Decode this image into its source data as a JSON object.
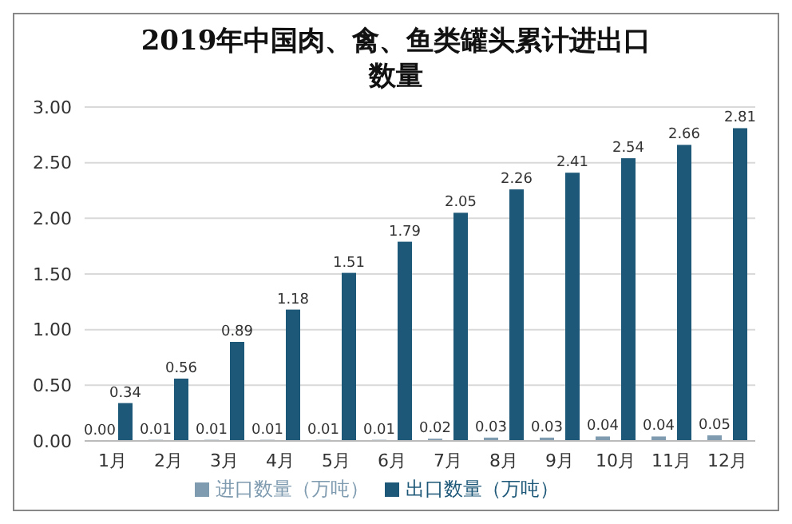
{
  "chart_data": {
    "type": "bar",
    "title": "2019年中国肉、禽、鱼类罐头累计进出口数量",
    "categories": [
      "1月",
      "2月",
      "3月",
      "4月",
      "5月",
      "6月",
      "7月",
      "8月",
      "9月",
      "10月",
      "11月",
      "12月"
    ],
    "series": [
      {
        "name": "进口数量（万吨）",
        "color": "#7f9bb0",
        "values": [
          0.0,
          0.01,
          0.01,
          0.01,
          0.01,
          0.01,
          0.02,
          0.03,
          0.03,
          0.04,
          0.04,
          0.05
        ],
        "value_labels": [
          "0.00",
          "0.01",
          "0.01",
          "0.01",
          "0.01",
          "0.01",
          "0.02",
          "0.03",
          "0.03",
          "0.04",
          "0.04",
          "0.05"
        ]
      },
      {
        "name": "出口数量（万吨）",
        "color": "#1e5878",
        "values": [
          0.34,
          0.56,
          0.89,
          1.18,
          1.51,
          1.79,
          2.05,
          2.26,
          2.41,
          2.54,
          2.66,
          2.81
        ],
        "value_labels": [
          "0.34",
          "0.56",
          "0.89",
          "1.18",
          "1.51",
          "1.79",
          "2.05",
          "2.26",
          "2.41",
          "2.54",
          "2.66",
          "2.81"
        ]
      }
    ],
    "ylim": [
      0,
      3
    ],
    "yticks": [
      {
        "value": 0,
        "label": "0.00"
      },
      {
        "value": 0.5,
        "label": "0.50"
      },
      {
        "value": 1,
        "label": "1.00"
      },
      {
        "value": 1.5,
        "label": "1.50"
      },
      {
        "value": 2,
        "label": "2.00"
      },
      {
        "value": 2.5,
        "label": "2.50"
      },
      {
        "value": 3,
        "label": "3.00"
      }
    ],
    "grid": "y",
    "legend": "bottom"
  }
}
